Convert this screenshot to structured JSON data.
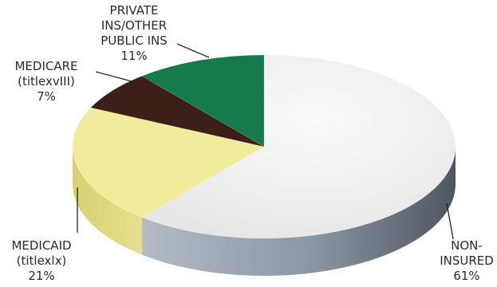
{
  "chart_data": {
    "type": "pie",
    "style": "3d",
    "title": "",
    "slices": [
      {
        "label": [
          "NON-",
          "INSURED"
        ],
        "percent_text": "61%",
        "value": 61,
        "top_color": "#f2f2f2",
        "side_color": "#8d98a4"
      },
      {
        "label": [
          "MEDICAID",
          "(titlexlx)"
        ],
        "percent_text": "21%",
        "value": 21,
        "top_color": "#f1ec9c",
        "side_color": "#d8d07a"
      },
      {
        "label": [
          "MEDICARE",
          "(titlexvIII)"
        ],
        "percent_text": "7%",
        "value": 7,
        "top_color": "#3d1f19",
        "side_color": "#2a1410"
      },
      {
        "label": [
          "PRIVATE",
          "INS/OTHER",
          "PUBLIC INS"
        ],
        "percent_text": "11%",
        "value": 11,
        "top_color": "#157b4c",
        "side_color": "#0e5a37"
      }
    ]
  }
}
